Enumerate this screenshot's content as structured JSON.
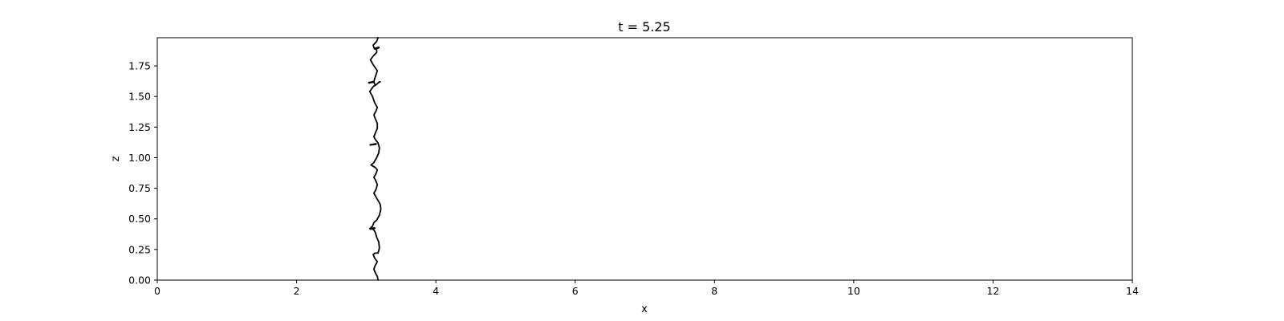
{
  "chart_data": {
    "type": "line",
    "title": "t = 5.25",
    "xlabel": "x",
    "ylabel": "z",
    "xlim": [
      0,
      14
    ],
    "ylim": [
      0,
      1.98
    ],
    "grid": false,
    "x_ticks": [
      "0",
      "2",
      "4",
      "6",
      "8",
      "10",
      "12",
      "14"
    ],
    "y_ticks": [
      "0.00",
      "0.25",
      "0.50",
      "0.75",
      "1.00",
      "1.25",
      "1.50",
      "1.75"
    ],
    "series": [
      {
        "color": "#000000",
        "x": [
          3.17,
          3.16,
          3.13,
          3.11,
          3.13,
          3.16,
          3.12,
          3.1,
          3.13,
          3.17,
          3.19,
          3.18,
          3.15,
          3.13,
          3.11,
          3.08,
          3.05,
          3.09,
          3.11,
          3.15,
          3.19,
          3.21,
          3.2,
          3.16,
          3.13,
          3.11,
          3.14,
          3.16,
          3.13,
          3.11,
          3.14,
          3.16,
          3.13,
          3.1,
          3.07,
          3.11,
          3.15,
          3.18,
          3.19,
          3.17,
          3.13,
          3.11,
          3.13,
          3.16,
          3.16,
          3.13,
          3.11,
          3.14,
          3.16,
          3.12,
          3.09,
          3.05,
          3.1,
          3.15,
          3.19,
          3.2,
          3.17,
          3.13,
          3.11,
          3.13,
          3.16,
          3.1,
          3.06,
          3.1,
          3.15,
          3.15,
          3.11,
          3.1,
          3.15,
          3.17,
          3.16
        ],
        "y": [
          0.0,
          0.03,
          0.06,
          0.09,
          0.12,
          0.15,
          0.18,
          0.21,
          0.22,
          0.22,
          0.26,
          0.31,
          0.35,
          0.39,
          0.41,
          0.42,
          0.42,
          0.44,
          0.47,
          0.49,
          0.53,
          0.58,
          0.62,
          0.66,
          0.69,
          0.71,
          0.74,
          0.78,
          0.82,
          0.84,
          0.87,
          0.9,
          0.92,
          0.93,
          0.94,
          0.96,
          1.0,
          1.04,
          1.08,
          1.12,
          1.15,
          1.17,
          1.2,
          1.24,
          1.28,
          1.32,
          1.35,
          1.38,
          1.41,
          1.45,
          1.5,
          1.54,
          1.58,
          1.6,
          1.62,
          1.62,
          1.61,
          1.59,
          1.62,
          1.66,
          1.71,
          1.76,
          1.8,
          1.83,
          1.86,
          1.88,
          1.9,
          1.92,
          1.95,
          1.98,
          1.98
        ]
      },
      {
        "color": "#000000",
        "x": [
          3.06,
          3.14
        ],
        "y": [
          1.105,
          1.112
        ]
      },
      {
        "color": "#000000",
        "x": [
          3.04,
          3.11
        ],
        "y": [
          1.612,
          1.62
        ]
      },
      {
        "color": "#000000",
        "x": [
          3.06,
          3.12
        ],
        "y": [
          0.418,
          0.425
        ]
      },
      {
        "color": "#000000",
        "x": [
          3.12,
          3.18
        ],
        "y": [
          1.89,
          1.9
        ]
      }
    ]
  }
}
